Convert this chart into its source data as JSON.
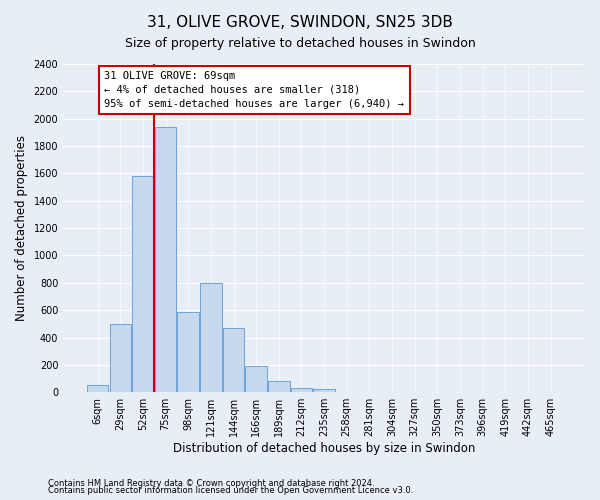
{
  "title": "31, OLIVE GROVE, SWINDON, SN25 3DB",
  "subtitle": "Size of property relative to detached houses in Swindon",
  "xlabel": "Distribution of detached houses by size in Swindon",
  "ylabel": "Number of detached properties",
  "categories": [
    "6sqm",
    "29sqm",
    "52sqm",
    "75sqm",
    "98sqm",
    "121sqm",
    "144sqm",
    "166sqm",
    "189sqm",
    "212sqm",
    "235sqm",
    "258sqm",
    "281sqm",
    "304sqm",
    "327sqm",
    "350sqm",
    "373sqm",
    "396sqm",
    "419sqm",
    "442sqm",
    "465sqm"
  ],
  "values": [
    50,
    500,
    1580,
    1940,
    590,
    800,
    470,
    195,
    85,
    30,
    20,
    0,
    0,
    0,
    0,
    0,
    0,
    0,
    0,
    0,
    0
  ],
  "bar_color": "#c5d8ee",
  "bar_edge_color": "#5b9bd5",
  "vline_x_index": 2.5,
  "vline_color": "#cc0000",
  "annotation_text": "31 OLIVE GROVE: 69sqm\n← 4% of detached houses are smaller (318)\n95% of semi-detached houses are larger (6,940) →",
  "annotation_box_facecolor": "#ffffff",
  "annotation_box_edgecolor": "#cc0000",
  "ylim_max": 2400,
  "ytick_step": 200,
  "footnote1": "Contains HM Land Registry data © Crown copyright and database right 2024.",
  "footnote2": "Contains public sector information licensed under the Open Government Licence v3.0.",
  "bg_color": "#e8eef6",
  "title_fontsize": 11,
  "subtitle_fontsize": 9,
  "tick_fontsize": 7,
  "ylabel_fontsize": 8.5,
  "xlabel_fontsize": 8.5,
  "footnote_fontsize": 6,
  "annot_fontsize": 7.5
}
